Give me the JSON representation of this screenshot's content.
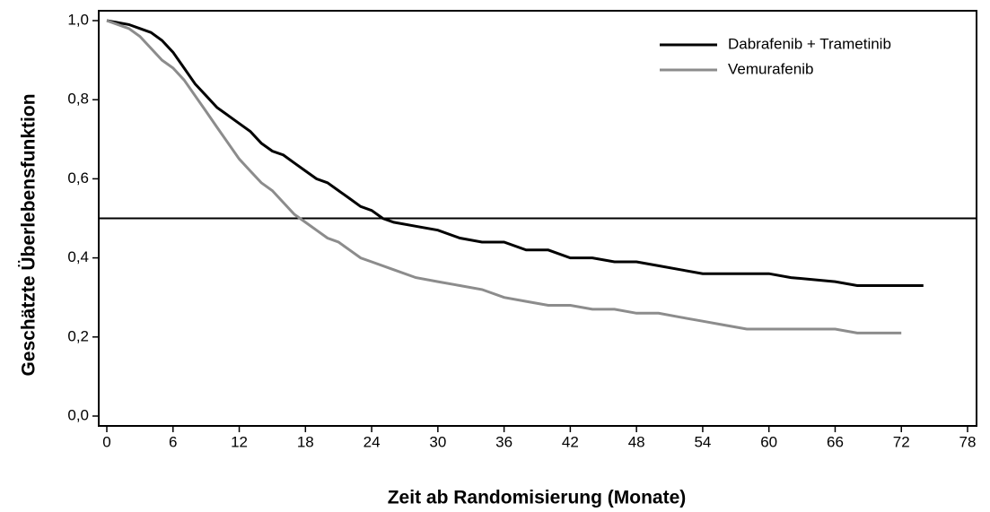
{
  "chart_data": {
    "type": "line",
    "xlabel": "Zeit ab Randomisierung (Monate)",
    "ylabel": "Geschätzte Überlebensfunktion",
    "xlim": [
      0,
      78
    ],
    "xticks": [
      0,
      6,
      12,
      18,
      24,
      30,
      36,
      42,
      48,
      54,
      60,
      66,
      72,
      78
    ],
    "ylim": [
      0,
      1
    ],
    "yticks": [
      {
        "value": 0,
        "label": "0,0"
      },
      {
        "value": 0.2,
        "label": "0,2"
      },
      {
        "value": 0.4,
        "label": "0,4"
      },
      {
        "value": 0.6,
        "label": "0,6"
      },
      {
        "value": 0.8,
        "label": "0,8"
      },
      {
        "value": 1,
        "label": "1,0"
      }
    ],
    "hline": 0.5,
    "legend": "upper right",
    "series": [
      {
        "name": "Dabrafenib + Trametinib",
        "color": "#000000",
        "x": [
          0,
          2,
          3,
          4,
          5,
          6,
          7,
          8,
          9,
          10,
          11,
          12,
          13,
          14,
          15,
          16,
          17,
          18,
          19,
          20,
          21,
          22,
          23,
          24,
          25,
          26,
          28,
          30,
          32,
          34,
          36,
          38,
          40,
          42,
          44,
          46,
          48,
          50,
          52,
          54,
          56,
          60,
          62,
          66,
          68,
          74
        ],
        "values": [
          1.0,
          0.99,
          0.98,
          0.97,
          0.95,
          0.92,
          0.88,
          0.84,
          0.81,
          0.78,
          0.76,
          0.74,
          0.72,
          0.69,
          0.67,
          0.66,
          0.64,
          0.62,
          0.6,
          0.59,
          0.57,
          0.55,
          0.53,
          0.52,
          0.5,
          0.49,
          0.48,
          0.47,
          0.45,
          0.44,
          0.44,
          0.42,
          0.42,
          0.4,
          0.4,
          0.39,
          0.39,
          0.38,
          0.37,
          0.36,
          0.36,
          0.36,
          0.35,
          0.34,
          0.33,
          0.33
        ]
      },
      {
        "name": "Vemurafenib",
        "color": "#8c8c8c",
        "x": [
          0,
          2,
          3,
          4,
          5,
          6,
          7,
          8,
          9,
          10,
          11,
          12,
          13,
          14,
          15,
          16,
          17,
          18,
          19,
          20,
          21,
          22,
          23,
          24,
          26,
          28,
          30,
          32,
          34,
          36,
          38,
          40,
          42,
          44,
          46,
          48,
          50,
          52,
          54,
          56,
          58,
          66,
          68,
          72
        ],
        "values": [
          1.0,
          0.98,
          0.96,
          0.93,
          0.9,
          0.88,
          0.85,
          0.81,
          0.77,
          0.73,
          0.69,
          0.65,
          0.62,
          0.59,
          0.57,
          0.54,
          0.51,
          0.49,
          0.47,
          0.45,
          0.44,
          0.42,
          0.4,
          0.39,
          0.37,
          0.35,
          0.34,
          0.33,
          0.32,
          0.3,
          0.29,
          0.28,
          0.28,
          0.27,
          0.27,
          0.26,
          0.26,
          0.25,
          0.24,
          0.23,
          0.22,
          0.22,
          0.21,
          0.21
        ]
      }
    ]
  }
}
